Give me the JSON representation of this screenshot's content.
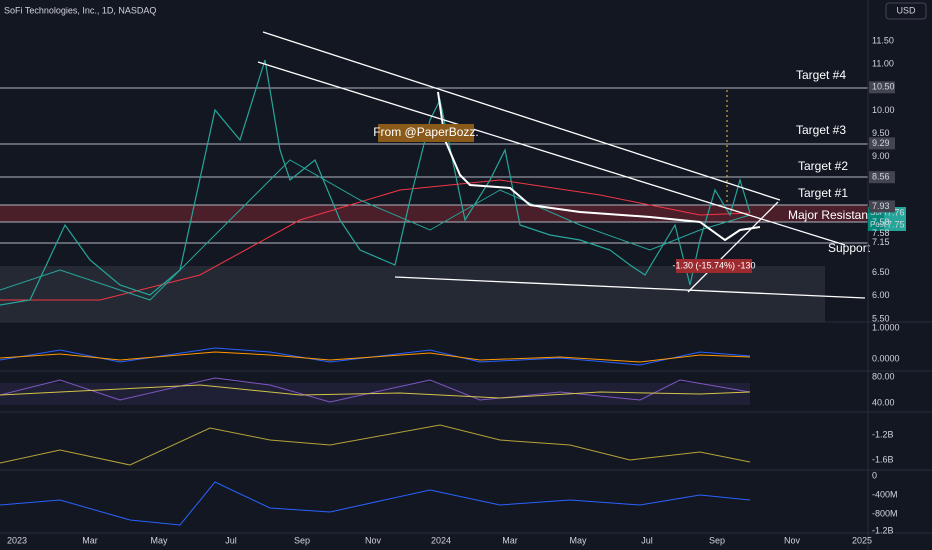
{
  "header": {
    "title": "SoFi Technologies, Inc., 1D, NASDAQ",
    "currency": "USD"
  },
  "price_axis": [
    "11.50",
    "11.00",
    "10.50",
    "10.00",
    "9.50",
    "9.29",
    "9.00",
    "8.56",
    "7.93",
    "7.58",
    "7.58",
    "7.15",
    "6.50",
    "6.00",
    "5.50"
  ],
  "price_tags": [
    {
      "name": "SoFi",
      "price": "7.76"
    },
    {
      "name": "Post",
      "price": "7.75"
    }
  ],
  "annotations": {
    "target4": "Target #4",
    "target3": "Target #3",
    "target2": "Target #2",
    "target1": "Target #1",
    "resistance": "Major Resistance",
    "support": "Support",
    "credit": "From @PaperBozz.",
    "measure": "-1.30 (-15.74%) -130"
  },
  "macd_axis": [
    "1.0000",
    "0.0000"
  ],
  "rsi_axis": [
    "80.00",
    "40.00"
  ],
  "obv_axis": [
    "-1.2B",
    "-1.6B"
  ],
  "flow_axis": [
    "0",
    "-400M",
    "-800M",
    "-1.2B"
  ],
  "time_axis": [
    "2023",
    "Mar",
    "May",
    "Jul",
    "Sep",
    "Nov",
    "2024",
    "Mar",
    "May",
    "Jul",
    "Sep",
    "Nov",
    "2025"
  ]
}
